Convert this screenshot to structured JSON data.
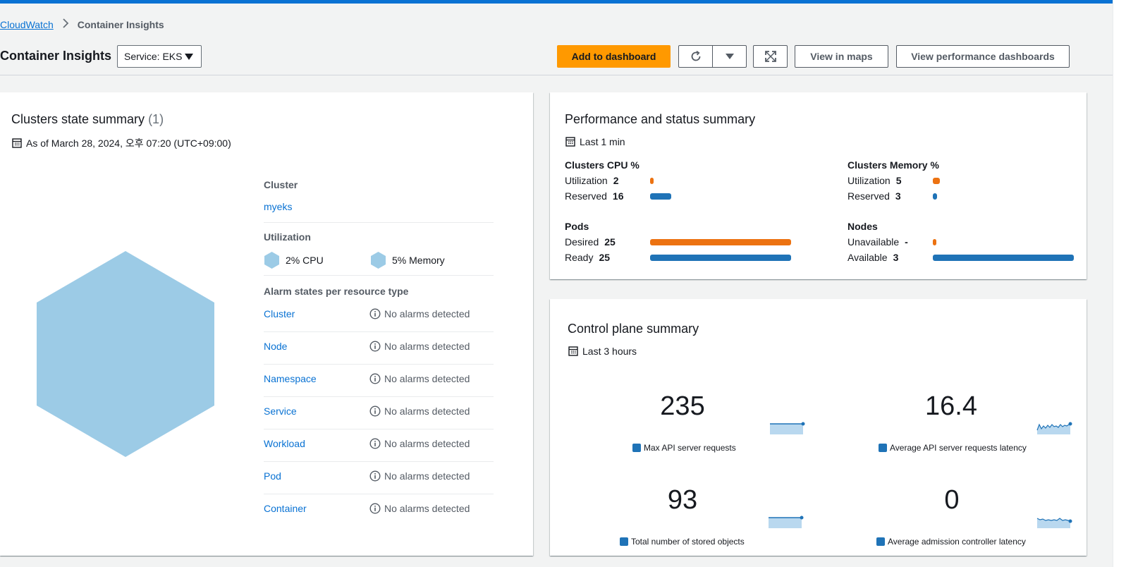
{
  "breadcrumb": {
    "root": "CloudWatch",
    "current": "Container Insights"
  },
  "header": {
    "title": "Container Insights",
    "service_select": "Service: EKS",
    "add_to_dashboard": "Add to dashboard",
    "view_in_maps": "View in maps",
    "view_performance_dashboards": "View performance dashboards"
  },
  "clusters_panel": {
    "title": "Clusters state summary",
    "count": "(1)",
    "as_of": "As of March 28, 2024, 오후 07:20 (UTC+09:00)",
    "cluster_label": "Cluster",
    "cluster_name": "myeks",
    "utilization_label": "Utilization",
    "cpu": "2% CPU",
    "memory": "5% Memory",
    "alarm_label": "Alarm states per resource type",
    "alarm_rows": [
      {
        "type": "Cluster",
        "state": "No alarms detected"
      },
      {
        "type": "Node",
        "state": "No alarms detected"
      },
      {
        "type": "Namespace",
        "state": "No alarms detected"
      },
      {
        "type": "Service",
        "state": "No alarms detected"
      },
      {
        "type": "Workload",
        "state": "No alarms detected"
      },
      {
        "type": "Pod",
        "state": "No alarms detected"
      },
      {
        "type": "Container",
        "state": "No alarms detected"
      }
    ],
    "hex_color": "#9ccbe6"
  },
  "performance_panel": {
    "title": "Performance and status summary",
    "period": "Last 1 min",
    "cpu": {
      "title": "Clusters CPU %",
      "utilization_label": "Utilization",
      "utilization_value": "2",
      "reserved_label": "Reserved",
      "reserved_value": "16"
    },
    "memory": {
      "title": "Clusters Memory %",
      "utilization_label": "Utilization",
      "utilization_value": "5",
      "reserved_label": "Reserved",
      "reserved_value": "3"
    },
    "pods": {
      "title": "Pods",
      "desired_label": "Desired",
      "desired_value": "25",
      "ready_label": "Ready",
      "ready_value": "25"
    },
    "nodes": {
      "title": "Nodes",
      "unavailable_label": "Unavailable",
      "unavailable_value": "-",
      "available_label": "Available",
      "available_value": "3"
    },
    "colors": {
      "orange": "#ec7211",
      "blue": "#1f73b7"
    }
  },
  "control_plane_panel": {
    "title": "Control plane summary",
    "period": "Last 3 hours",
    "metrics": [
      {
        "value": "235",
        "label": "Max API server requests"
      },
      {
        "value": "16.4",
        "label": "Average API server requests latency"
      },
      {
        "value": "93",
        "label": "Total number of stored objects"
      },
      {
        "value": "0",
        "label": "Average admission controller latency"
      }
    ]
  }
}
